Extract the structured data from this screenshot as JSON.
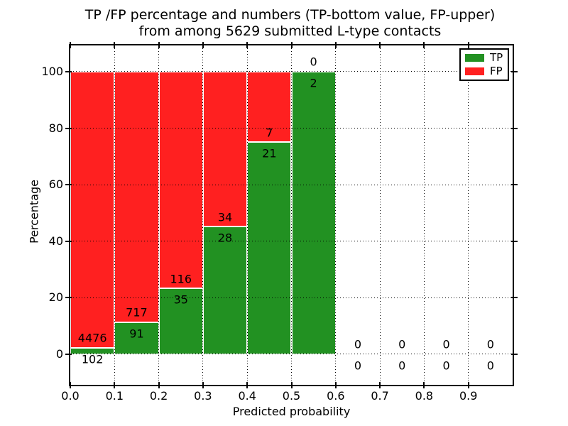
{
  "chart_data": {
    "type": "bar",
    "stacked": true,
    "title": "TP /FP percentage and numbers (TP-bottom value, FP-upper) from among 5629 submitted L-type contacts",
    "title_lines": [
      "TP /FP percentage and numbers (TP-bottom value, FP-upper)",
      "from among 5629 submitted L-type contacts"
    ],
    "xlabel": "Predicted probability",
    "ylabel": "Percentage",
    "total_contacts": 5629,
    "xlim": [
      0.0,
      1.0
    ],
    "ylim": [
      -10.9,
      109.3
    ],
    "grid": "dotted",
    "bin_width": 0.1,
    "bin_starts": [
      0.0,
      0.1,
      0.2,
      0.3,
      0.4,
      0.5,
      0.6,
      0.7,
      0.8,
      0.9
    ],
    "x_tick_labels": [
      "0.0",
      "0.1",
      "0.2",
      "0.3",
      "0.4",
      "0.5",
      "0.6",
      "0.7",
      "0.8",
      "0.9"
    ],
    "y_tick_values": [
      0,
      20,
      40,
      60,
      80,
      100
    ],
    "legend_position": "upper right",
    "series": [
      {
        "name": "TP",
        "color": "#229122",
        "counts": [
          102,
          91,
          35,
          28,
          21,
          2,
          0,
          0,
          0,
          0
        ],
        "pct": [
          2.23,
          11.26,
          23.18,
          45.16,
          75.0,
          100.0,
          0,
          0,
          0,
          0
        ]
      },
      {
        "name": "FP",
        "color": "#ff2020",
        "counts": [
          4476,
          717,
          116,
          34,
          7,
          0,
          0,
          0,
          0,
          0
        ],
        "pct": [
          97.77,
          88.74,
          76.82,
          54.84,
          25.0,
          0,
          0,
          0,
          0,
          0
        ]
      }
    ]
  }
}
